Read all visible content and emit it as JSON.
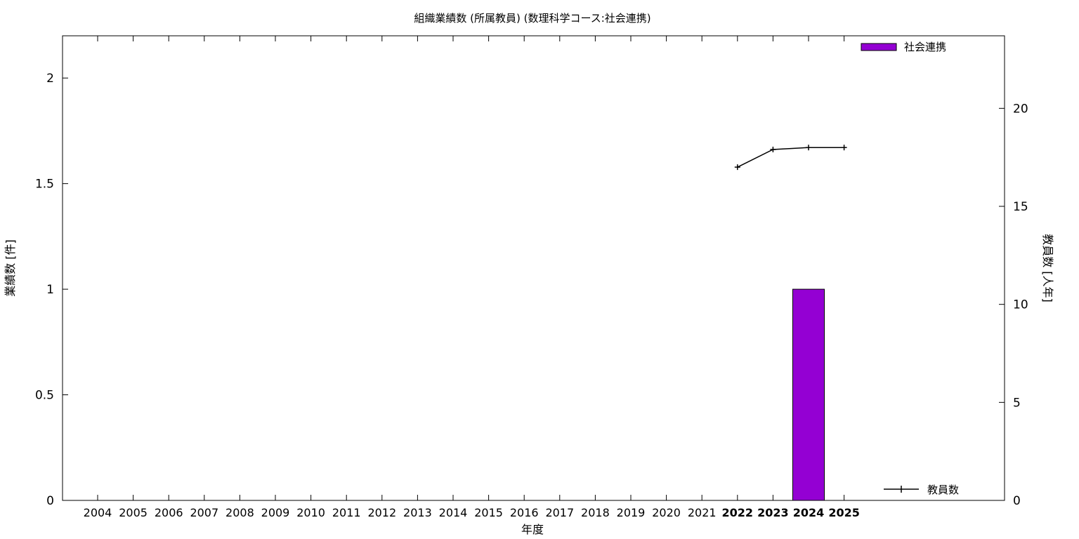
{
  "chart_data": {
    "type": "bar",
    "title": "組織業績数 (所属教員) (数理科学コース:社会連携)",
    "xlabel": "年度",
    "ylabel": "業績数 [件]",
    "y2label": "教員数 [人年]",
    "categories": [
      "2004",
      "2005",
      "2006",
      "2007",
      "2008",
      "2009",
      "2010",
      "2011",
      "2012",
      "2013",
      "2014",
      "2015",
      "2016",
      "2017",
      "2018",
      "2019",
      "2020",
      "2021",
      "2022",
      "2023",
      "2024",
      "2025"
    ],
    "highlighted_categories": [
      "2022",
      "2023",
      "2024",
      "2025"
    ],
    "ylim": [
      0,
      2.2
    ],
    "yticks": [
      "0",
      "0.5",
      "1",
      "1.5",
      "2"
    ],
    "y2lim": [
      0,
      23.7
    ],
    "y2ticks": [
      "0",
      "5",
      "10",
      "15",
      "20"
    ],
    "legend_placement": "top-right",
    "grid": false,
    "series": [
      {
        "name": "社会連携",
        "type": "bar",
        "axis": "left",
        "color": "#9400d3",
        "values": [
          0,
          0,
          0,
          0,
          0,
          0,
          0,
          0,
          0,
          0,
          0,
          0,
          0,
          0,
          0,
          0,
          0,
          0,
          0,
          0,
          1,
          0
        ]
      },
      {
        "name": "教員数",
        "type": "line",
        "axis": "right",
        "color": "#000000",
        "x": [
          "2022",
          "2023",
          "2024",
          "2025"
        ],
        "values": [
          17.0,
          17.9,
          18.0,
          18.0
        ]
      }
    ]
  }
}
